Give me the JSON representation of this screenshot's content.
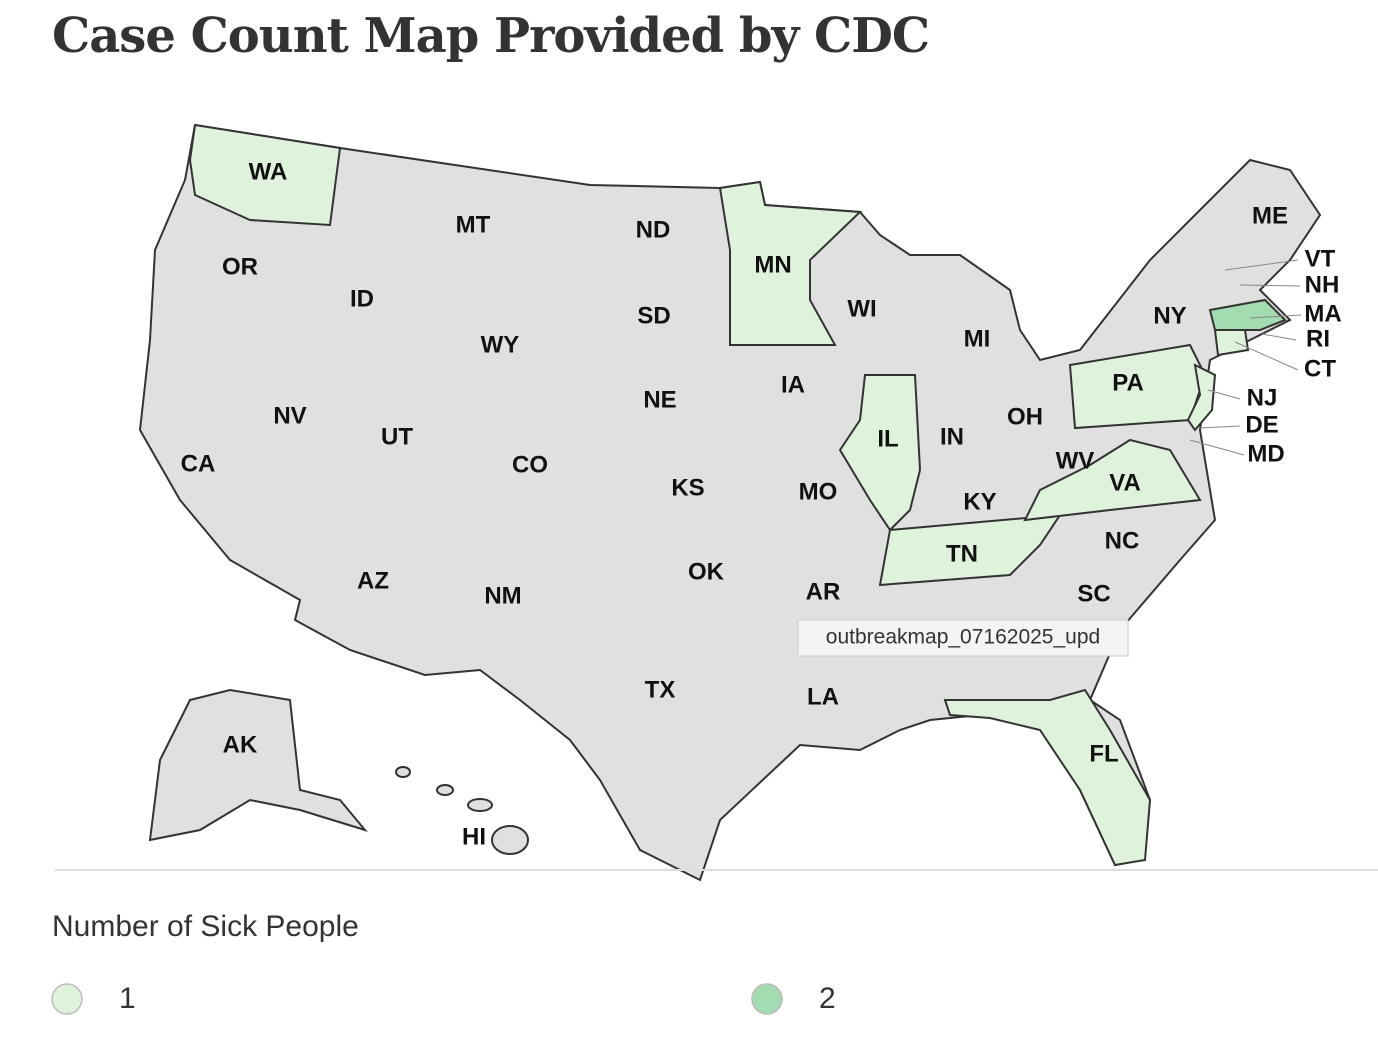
{
  "title": "Case Count Map Provided by CDC",
  "states": [
    {
      "label": "WA",
      "cases": 1
    },
    {
      "label": "OR"
    },
    {
      "label": "CA"
    },
    {
      "label": "NV"
    },
    {
      "label": "ID"
    },
    {
      "label": "MT"
    },
    {
      "label": "WY"
    },
    {
      "label": "UT"
    },
    {
      "label": "AZ"
    },
    {
      "label": "CO"
    },
    {
      "label": "NM"
    },
    {
      "label": "ND"
    },
    {
      "label": "SD"
    },
    {
      "label": "NE"
    },
    {
      "label": "KS"
    },
    {
      "label": "OK"
    },
    {
      "label": "TX"
    },
    {
      "label": "MN",
      "cases": 1
    },
    {
      "label": "IA"
    },
    {
      "label": "MO"
    },
    {
      "label": "AR"
    },
    {
      "label": "LA"
    },
    {
      "label": "WI"
    },
    {
      "label": "IL",
      "cases": 1
    },
    {
      "label": "MI"
    },
    {
      "label": "IN"
    },
    {
      "label": "OH"
    },
    {
      "label": "KY"
    },
    {
      "label": "TN",
      "cases": 1
    },
    {
      "label": "WV"
    },
    {
      "label": "VA",
      "cases": 1
    },
    {
      "label": "NC"
    },
    {
      "label": "SC"
    },
    {
      "label": "FL",
      "cases": 1
    },
    {
      "label": "PA",
      "cases": 1
    },
    {
      "label": "NY"
    },
    {
      "label": "ME"
    },
    {
      "label": "AK"
    },
    {
      "label": "HI"
    },
    {
      "label": "VT"
    },
    {
      "label": "NH"
    },
    {
      "label": "MA",
      "cases": 2
    },
    {
      "label": "RI"
    },
    {
      "label": "CT",
      "cases": 1
    },
    {
      "label": "NJ",
      "cases": 1
    },
    {
      "label": "DE"
    },
    {
      "label": "MD"
    }
  ],
  "tooltip": "outbreakmap_07162025_upd",
  "legend": {
    "title": "Number of Sick People",
    "items": [
      {
        "value": 1,
        "color": "#dff2dc"
      },
      {
        "value": 2,
        "color": "#a3dcb0"
      }
    ]
  }
}
